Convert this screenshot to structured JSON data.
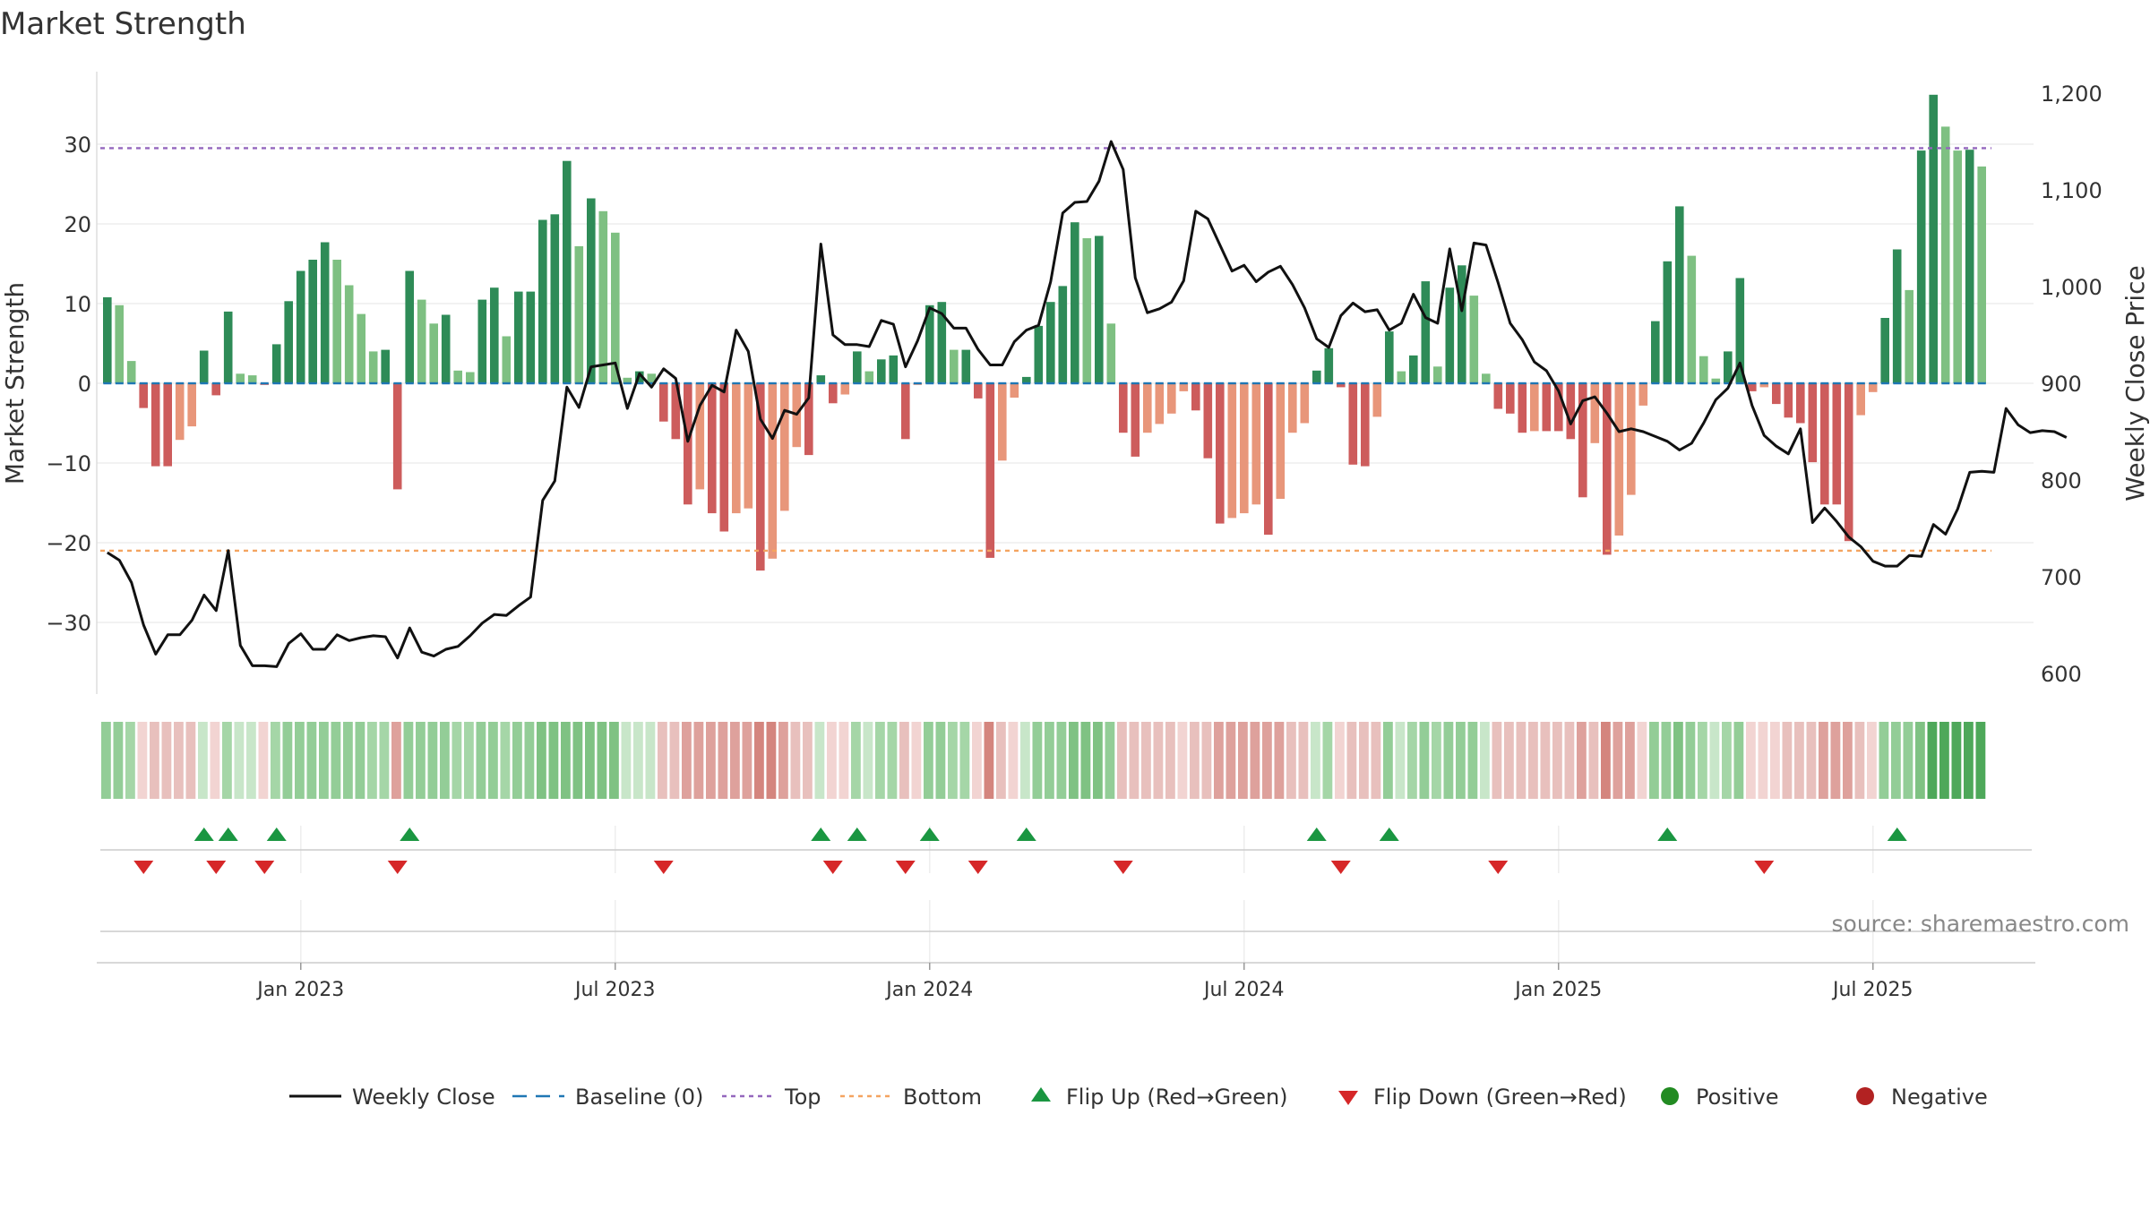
{
  "chart_data": {
    "type": "bar",
    "title": "Market Strength",
    "ylabel": "Market Strength",
    "y2label": "Weekly Close Price",
    "ylim": [
      -39,
      39
    ],
    "y2lim": [
      570,
      1230
    ],
    "yticks": [
      -30,
      -20,
      -10,
      0,
      10,
      20,
      30
    ],
    "yticklabels": [
      "−30",
      "−20",
      "−10",
      "0",
      "10",
      "20",
      "30"
    ],
    "y2ticks": [
      600,
      700,
      800,
      900,
      1000,
      1100,
      1200
    ],
    "y2ticklabels": [
      "600",
      "700",
      "800",
      "900",
      "1,000",
      "1,100",
      "1,200"
    ],
    "xticks": [
      {
        "index": 16,
        "label": "Jan 2023"
      },
      {
        "index": 42,
        "label": "Jul 2023"
      },
      {
        "index": 68,
        "label": "Jan 2024"
      },
      {
        "index": 94,
        "label": "Jul 2024"
      },
      {
        "index": 120,
        "label": "Jan 2025"
      },
      {
        "index": 146,
        "label": "Jul 2025"
      }
    ],
    "top_level": 29.5,
    "bottom_level": -21,
    "strength": [
      10.8,
      9.8,
      2.8,
      -3.1,
      -10.4,
      -10.4,
      -7.1,
      -5.4,
      4.1,
      -1.5,
      9.0,
      1.2,
      1.0,
      -0.2,
      4.9,
      10.3,
      14.1,
      15.5,
      17.7,
      15.5,
      12.3,
      8.7,
      4.0,
      4.2,
      -13.3,
      14.1,
      10.5,
      7.5,
      8.6,
      1.6,
      1.4,
      10.5,
      12.0,
      5.9,
      11.5,
      11.5,
      20.5,
      21.2,
      27.9,
      17.2,
      23.2,
      21.6,
      18.9,
      0.7,
      1.5,
      1.2,
      -4.8,
      -7.0,
      -15.2,
      -13.3,
      -16.3,
      -18.6,
      -16.3,
      -15.7,
      -23.5,
      -22.0,
      -16.0,
      -8.0,
      -9.0,
      1.0,
      -2.5,
      -1.4,
      4.0,
      1.5,
      3.0,
      3.5,
      -7.0,
      -0.2,
      9.8,
      10.2,
      4.2,
      4.2,
      -1.9,
      -21.9,
      -9.7,
      -1.8,
      0.8,
      7.2,
      10.2,
      12.2,
      20.2,
      18.2,
      18.5,
      7.5,
      -6.2,
      -9.2,
      -6.2,
      -5.1,
      -3.8,
      -1.0,
      -3.4,
      -9.4,
      -17.6,
      -16.9,
      -16.3,
      -15.2,
      -19.0,
      -14.5,
      -6.2,
      -5.0,
      1.6,
      4.4,
      -0.5,
      -10.2,
      -10.4,
      -4.2,
      6.5,
      1.5,
      3.5,
      12.8,
      2.1,
      12.0,
      14.8,
      11.0,
      1.2,
      -3.2,
      -3.8,
      -6.2,
      -6.0,
      -6.0,
      -6.0,
      -7.0,
      -14.3,
      -7.5,
      -21.5,
      -19.1,
      -14.0,
      -2.8,
      7.8,
      15.3,
      22.2,
      16.0,
      3.4,
      0.6,
      4.0,
      13.2,
      -1.0,
      -0.5,
      -2.6,
      -4.3,
      -5.0,
      -9.9,
      -15.2,
      -15.2,
      -19.8,
      -4.0,
      -1.1,
      8.2,
      16.8,
      11.7,
      29.2,
      36.2,
      32.2,
      29.2,
      29.3,
      27.2
    ],
    "weekly_close": [
      725,
      717,
      694,
      650,
      620,
      640,
      640,
      655,
      681,
      665,
      727,
      629,
      608,
      608,
      607,
      631,
      641,
      625,
      625,
      640,
      634,
      637,
      639,
      638,
      616,
      647,
      622,
      618,
      625,
      628,
      639,
      652,
      661,
      660,
      670,
      679,
      779,
      799,
      896,
      875,
      917,
      919,
      921,
      874,
      910,
      896,
      915,
      905,
      840,
      877,
      898,
      891,
      955,
      933,
      863,
      843,
      872,
      868,
      885,
      1044,
      950,
      940,
      940,
      938,
      965,
      961,
      917,
      944,
      978,
      972,
      957,
      957,
      935,
      919,
      919,
      943,
      955,
      960,
      1005,
      1076,
      1087,
      1088,
      1109,
      1150,
      1121,
      1009,
      973,
      977,
      984,
      1006,
      1078,
      1070,
      1043,
      1016,
      1022,
      1005,
      1015,
      1021,
      1002,
      978,
      946,
      937,
      970,
      983,
      974,
      976,
      955,
      962,
      992,
      968,
      962,
      1039,
      975,
      1045,
      1043,
      1004,
      962,
      945,
      922,
      913,
      892,
      858,
      882,
      886,
      869,
      850,
      853,
      850,
      845,
      840,
      831,
      838,
      859,
      883,
      895,
      921,
      877,
      846,
      835,
      827,
      853,
      756,
      771,
      757,
      741,
      731,
      716,
      711,
      711,
      722,
      721,
      754,
      744,
      770,
      808,
      809,
      808,
      874,
      857,
      849,
      851,
      850,
      844
    ],
    "tile_strength": [
      3,
      3,
      2,
      -1,
      -2,
      -2,
      -2,
      -2,
      1,
      -1,
      2,
      1,
      1,
      -1,
      2,
      3,
      3,
      3,
      3,
      3,
      3,
      3,
      2,
      2,
      -3,
      3,
      3,
      3,
      3,
      2,
      2,
      3,
      3,
      2,
      3,
      3,
      4,
      4,
      4,
      4,
      4,
      4,
      4,
      1,
      1,
      1,
      -2,
      -2,
      -3,
      -3,
      -3,
      -3,
      -3,
      -3,
      -4,
      -4,
      -3,
      -2,
      -2,
      1,
      -1,
      -1,
      2,
      1,
      2,
      2,
      -2,
      -1,
      3,
      3,
      2,
      2,
      -1,
      -4,
      -2,
      -1,
      1,
      3,
      3,
      3,
      4,
      4,
      4,
      3,
      -2,
      -2,
      -2,
      -2,
      -2,
      -1,
      -2,
      -2,
      -3,
      -3,
      -3,
      -3,
      -3,
      -3,
      -2,
      -2,
      1,
      2,
      -1,
      -2,
      -2,
      -2,
      3,
      1,
      2,
      3,
      2,
      3,
      3,
      3,
      1,
      -2,
      -2,
      -2,
      -2,
      -2,
      -2,
      -2,
      -3,
      -2,
      -4,
      -3,
      -3,
      -1,
      3,
      3,
      4,
      3,
      2,
      1,
      2,
      3,
      -1,
      -1,
      -1,
      -2,
      -2,
      -2,
      -3,
      -3,
      -3,
      -2,
      -1,
      3,
      3,
      3,
      4,
      5,
      5,
      5,
      5,
      5
    ],
    "flip_up_indices": [
      8,
      10,
      14,
      25,
      59,
      62,
      68,
      76,
      100,
      106,
      129,
      148
    ],
    "flip_down_indices": [
      3,
      9,
      13,
      24,
      46,
      60,
      66,
      72,
      84,
      102,
      115,
      137
    ],
    "legend": [
      {
        "label": "Weekly Close",
        "kind": "line"
      },
      {
        "label": "Baseline (0)",
        "kind": "dash"
      },
      {
        "label": "Top",
        "kind": "dot-purple"
      },
      {
        "label": "Bottom",
        "kind": "dot-orange"
      },
      {
        "label": "Flip Up (Red→Green)",
        "kind": "tri-up"
      },
      {
        "label": "Flip Down (Green→Red)",
        "kind": "tri-down"
      },
      {
        "label": "Positive",
        "kind": "circle-green"
      },
      {
        "label": "Negative",
        "kind": "circle-red"
      }
    ],
    "source": "source: sharemaestro.com",
    "colors": {
      "pos_dark": "#2e8b57",
      "pos_light": "#7ec082",
      "neg_dark": "#cd5c5c",
      "neg_light": "#e8967a",
      "close_line": "#111111",
      "baseline": "#1f77b4",
      "top": "#9467bd",
      "bottom": "#f4a460",
      "flip_up": "#1a9641",
      "flip_down": "#d62728",
      "legend_positive": "#228b22",
      "legend_negative": "#b22222"
    }
  }
}
